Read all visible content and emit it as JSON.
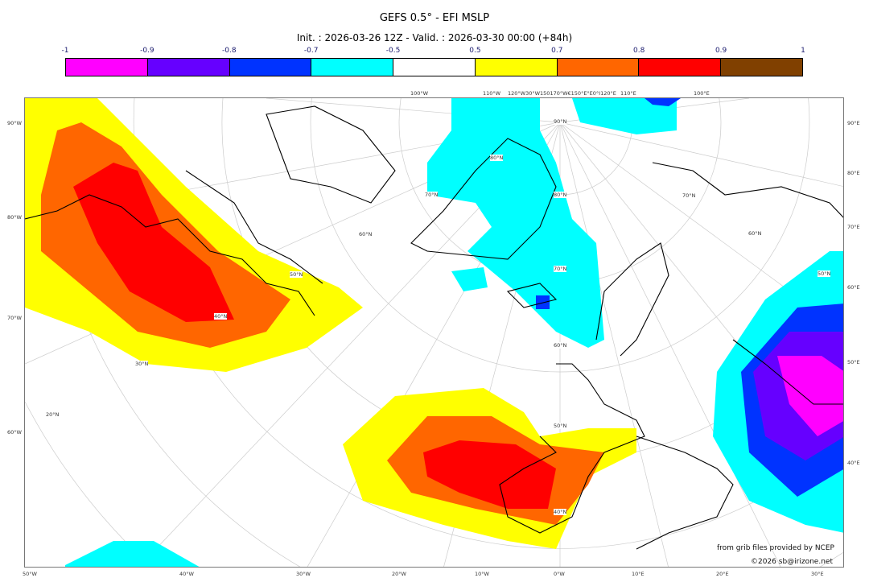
{
  "title": "GEFS 0.5° - EFI MSLP",
  "subtitle": "Init. : 2026-03-26 12Z - Valid. : 2026-03-30 00:00 (+84h)",
  "colorbar": {
    "labels": [
      "-1",
      "-0.9",
      "-0.8",
      "-0.7",
      "-0.5",
      "0.5",
      "0.7",
      "0.8",
      "0.9",
      "1"
    ],
    "colors": [
      "#ff00ff",
      "#6600ff",
      "#0033ff",
      "#00ffff",
      "#ffffff",
      "#ffff00",
      "#ff6600",
      "#ff0000",
      "#804000"
    ]
  },
  "axes": {
    "top": [
      "100°W",
      "110°W",
      "120°W30°W150170°W€150°E°E0°I120°E",
      "110°E",
      "100°E"
    ],
    "left": [
      "90°W",
      "80°W",
      "70°W",
      "60°W"
    ],
    "right": [
      "90°E",
      "80°E",
      "70°E",
      "60°E",
      "50°E",
      "40°E"
    ],
    "bottom": [
      "50°W",
      "40°W",
      "30°W",
      "20°W",
      "10°W",
      "0°W",
      "10°E",
      "20°E",
      "30°E"
    ],
    "lat": [
      "90°N",
      "80°N",
      "70°N",
      "60°N",
      "50°N",
      "40°N",
      "30°N",
      "20°N",
      "80°N",
      "70°N",
      "60°N",
      "50°N",
      "70°N",
      "60°N",
      "50°N",
      "40°N"
    ]
  },
  "credits": {
    "source": "from grib files provided by NCEP",
    "copyright": "©2026 sb@irizone.net"
  }
}
